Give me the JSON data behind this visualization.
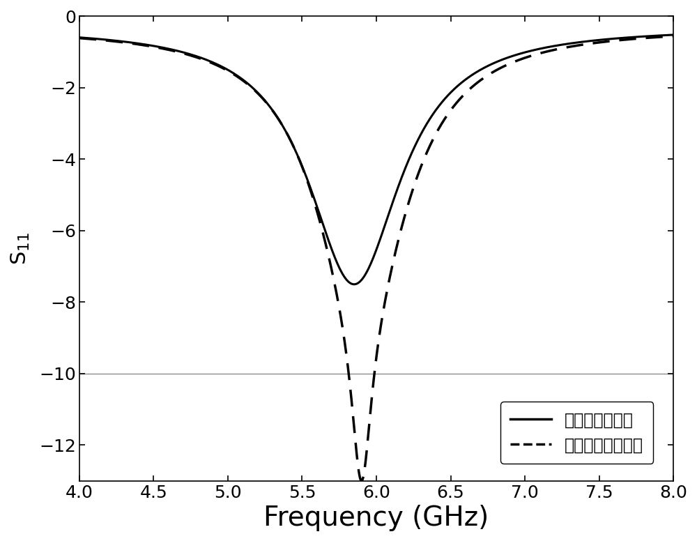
{
  "title": "",
  "xlabel": "Frequency (GHz)",
  "ylabel": "S_{11}",
  "xlim": [
    4.0,
    8.0
  ],
  "ylim": [
    -13,
    0
  ],
  "xticks": [
    4.0,
    4.5,
    5.0,
    5.5,
    6.0,
    6.5,
    7.0,
    7.5,
    8.0
  ],
  "yticks": [
    0,
    -2,
    -4,
    -6,
    -8,
    -10,
    -12
  ],
  "hline_y": -10,
  "legend_labels": [
    "等离子体全激励",
    "等离子体全不激励"
  ],
  "line1_color": "#000000",
  "line2_color": "#000000",
  "background_color": "#ffffff",
  "xlabel_fontsize": 28,
  "ylabel_fontsize": 22,
  "tick_fontsize": 18,
  "legend_fontsize": 17
}
